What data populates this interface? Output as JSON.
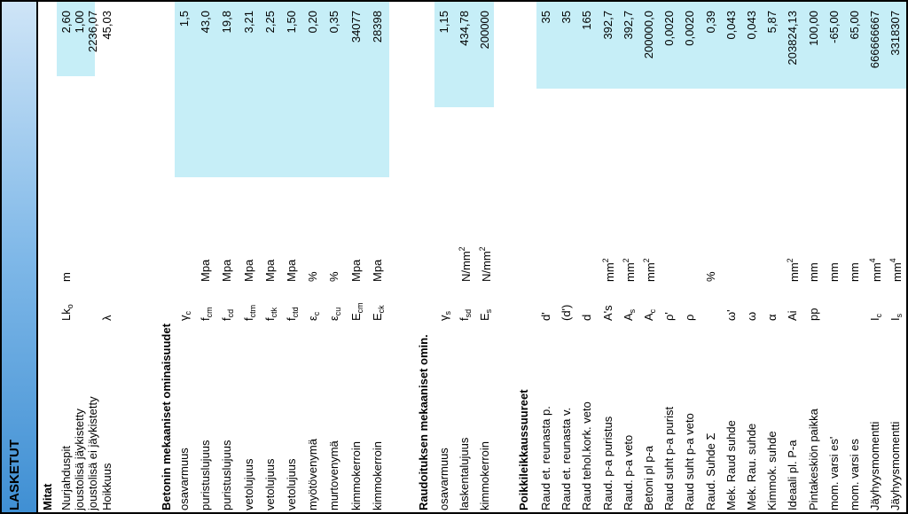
{
  "header": {
    "title": "LASKETUT"
  },
  "mitat": {
    "title": "Mitat",
    "rows": [
      {
        "label": "Nurjahduspit",
        "sym": "Lk",
        "sub": "o",
        "unit": "m",
        "value": "2,60"
      },
      {
        "label": "joustolisä jäykistetty",
        "sym": "",
        "sub": "",
        "unit": "",
        "value": "1,00"
      },
      {
        "label": "joustolisä ei jäykistetty",
        "sym": "",
        "sub": "",
        "unit": "",
        "value": "2236,07"
      },
      {
        "label": "Hoikkuus",
        "sym": "λ",
        "sub": "",
        "unit": "",
        "value": "45,03"
      }
    ]
  },
  "betoni": {
    "title": "Betonin mekaaniset ominaisuudet",
    "rows": [
      {
        "label": "osavarmuus",
        "sym": "γ",
        "sub": "c",
        "unit": "",
        "value": "1,5"
      },
      {
        "label": "puristuslujuus",
        "sym": "f",
        "sub": "cm",
        "unit": "Mpa",
        "value": "43,0"
      },
      {
        "label": "puristuslujuus",
        "sym": "f",
        "sub": "cd",
        "unit": "Mpa",
        "value": "19,8"
      },
      {
        "label": "vetolujuus",
        "sym": "f",
        "sub": "ctm",
        "unit": "Mpa",
        "value": "3,21"
      },
      {
        "label": "vetolujuus",
        "sym": "f",
        "sub": "ctk",
        "unit": "Mpa",
        "value": "2,25"
      },
      {
        "label": "vetolujuus",
        "sym": "f",
        "sub": "ctd",
        "unit": "Mpa",
        "value": "1,50"
      },
      {
        "label": "myötövenymä",
        "sym": "ε",
        "sub": "c",
        "unit": "%",
        "value": "0,20"
      },
      {
        "label": "murtovenymä",
        "sym": "ε",
        "sub": "cu",
        "unit": "%",
        "value": "0,35"
      },
      {
        "label": "kimmokerroin",
        "sym": "E",
        "sub": "cm",
        "unit": "Mpa",
        "value": "34077"
      },
      {
        "label": "kimmokerroin",
        "sym": "E",
        "sub": "ck",
        "unit": "Mpa",
        "value": "28398"
      }
    ]
  },
  "raudoitus": {
    "title": "Raudoituksen mekaaniset omin.",
    "rows": [
      {
        "label": "osavarmuus",
        "sym": "γ",
        "sub": "s",
        "unit": "",
        "usup": "",
        "value": "1,15"
      },
      {
        "label": "laskentalujuus",
        "sym": "f",
        "sub": "sd",
        "unit": "N/mm",
        "usup": "2",
        "value": "434,78"
      },
      {
        "label": "kimmokerroin",
        "sym": "E",
        "sub": "s",
        "unit": "N/mm",
        "usup": "2",
        "value": "200000"
      }
    ]
  },
  "poikki": {
    "title": "Poikkileikkaussuureet",
    "rows": [
      {
        "label": "Raud et. reunasta p.",
        "sym": "d'",
        "sub": "",
        "unit": "",
        "usup": "",
        "value": "35"
      },
      {
        "label": "Raud et. reunasta v.",
        "sym": "(d')",
        "sub": "",
        "unit": "",
        "usup": "",
        "value": "35"
      },
      {
        "label": "Raud tehol.kork. veto",
        "sym": "d",
        "sub": "",
        "unit": "",
        "usup": "",
        "value": "165"
      },
      {
        "label": "Raud. p-a puristus",
        "sym": "A's",
        "sub": "",
        "unit": "mm",
        "usup": "2",
        "value": "392,7"
      },
      {
        "label": "Raud. p-a veto",
        "sym": "A",
        "sub": "s",
        "unit": "mm",
        "usup": "2",
        "value": "392,7"
      },
      {
        "label": "Betoni pl p-a",
        "sym": "A",
        "sub": "c",
        "unit": "mm",
        "usup": "2",
        "value": "200000,0"
      },
      {
        "label": "Raud suht p-a purist",
        "sym": "ρ'",
        "sub": "",
        "unit": "",
        "usup": "",
        "value": "0,0020"
      },
      {
        "label": "Raud suht p-a veto",
        "sym": "ρ",
        "sub": "",
        "unit": "",
        "usup": "",
        "value": "0,0020"
      },
      {
        "label": "Raud. Suhde Σ",
        "sym": "",
        "sub": "",
        "unit": "%",
        "usup": "",
        "value": "0,39"
      },
      {
        "label": "Mek. Raud suhde",
        "sym": "ω'",
        "sub": "",
        "unit": "",
        "usup": "",
        "value": "0,043"
      },
      {
        "label": "Mek. Rau. suhde",
        "sym": "ω",
        "sub": "",
        "unit": "",
        "usup": "",
        "value": "0,043"
      },
      {
        "label": "Kimmok. suhde",
        "sym": "α",
        "sub": "",
        "unit": "",
        "usup": "",
        "value": "5,87"
      },
      {
        "label": "Ideaali pl. P-a",
        "sym": "Ai",
        "sub": "",
        "unit": "mm",
        "usup": "2",
        "value": "203824,13"
      },
      {
        "label": "Pintakeskiön paikka",
        "sym": "pp",
        "sub": "",
        "unit": "mm",
        "usup": "",
        "value": "100,00"
      },
      {
        "label": "mom. varsi es'",
        "sym": "",
        "sub": "",
        "unit": "mm",
        "usup": "",
        "value": "-65,00"
      },
      {
        "label": "mom. varsi es",
        "sym": "",
        "sub": "",
        "unit": "mm",
        "usup": "",
        "value": "65,00"
      },
      {
        "label": "Jäyhyysmomentti",
        "sym": "I",
        "sub": "c",
        "unit": "mm",
        "usup": "4",
        "value": "666666667"
      },
      {
        "label": "Jäyhyysmomentti",
        "sym": "I",
        "sub": "s",
        "unit": "mm",
        "usup": "4",
        "value": "3318307"
      }
    ]
  }
}
